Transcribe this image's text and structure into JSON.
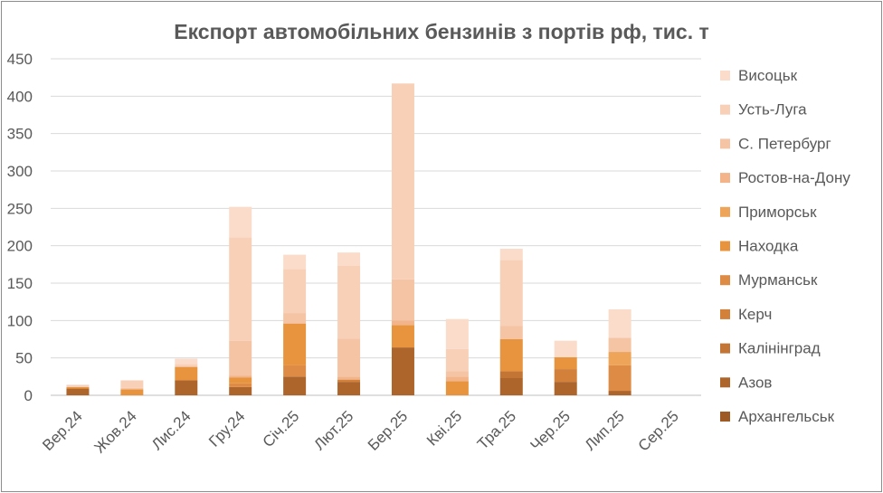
{
  "chart_data": {
    "type": "bar",
    "stacked": true,
    "title": "Експорт автомобільних бензинів з портів рф, тис. т",
    "xlabel": "",
    "ylabel": "",
    "ylim": [
      0,
      450
    ],
    "yticks": [
      0,
      50,
      100,
      150,
      200,
      250,
      300,
      350,
      400,
      450
    ],
    "grid": true,
    "legend_position": "right",
    "categories": [
      "Вер.24",
      "Жов.24",
      "Лис.24",
      "Гру.24",
      "Січ.25",
      "Лют.25",
      "Бер.25",
      "Кві.25",
      "Тра.25",
      "Чер.25",
      "Лип.25",
      "Сер.25"
    ],
    "series": [
      {
        "name": "Архангельськ",
        "color": "#9e5a24",
        "values": [
          0,
          0,
          0,
          0,
          0,
          0,
          0,
          0,
          0,
          0,
          0,
          0
        ]
      },
      {
        "name": "Азов",
        "color": "#ad652c",
        "values": [
          9,
          0,
          20,
          11,
          25,
          18,
          64,
          0,
          23,
          18,
          6,
          0
        ]
      },
      {
        "name": "Калінінград",
        "color": "#c27534",
        "values": [
          0,
          0,
          0,
          0,
          0,
          0,
          0,
          0,
          9,
          0,
          0,
          0
        ]
      },
      {
        "name": "Керч",
        "color": "#d3803b",
        "values": [
          0,
          0,
          0,
          0,
          0,
          3,
          0,
          0,
          0,
          17,
          0,
          0
        ]
      },
      {
        "name": "Мурманськ",
        "color": "#de8c45",
        "values": [
          0,
          0,
          0,
          5,
          15,
          0,
          0,
          0,
          0,
          0,
          34,
          0
        ]
      },
      {
        "name": "Находка",
        "color": "#e8943f",
        "values": [
          2,
          8,
          18,
          8,
          56,
          0,
          30,
          19,
          43,
          16,
          0,
          0
        ]
      },
      {
        "name": "Приморськ",
        "color": "#eea55a",
        "values": [
          0,
          0,
          0,
          0,
          0,
          0,
          0,
          0,
          0,
          0,
          18,
          0
        ]
      },
      {
        "name": "Ростов-на-Дону",
        "color": "#f2b488",
        "values": [
          0,
          0,
          0,
          2,
          0,
          4,
          6,
          6,
          0,
          0,
          0,
          0
        ]
      },
      {
        "name": "С. Петербург",
        "color": "#f5c4a5",
        "values": [
          0,
          2,
          0,
          47,
          14,
          51,
          55,
          7,
          18,
          0,
          19,
          0
        ]
      },
      {
        "name": "Усть-Луга",
        "color": "#f8d0b8",
        "values": [
          3,
          10,
          4,
          138,
          59,
          97,
          262,
          30,
          88,
          0,
          0,
          0
        ]
      },
      {
        "name": "Висоцьк",
        "color": "#fbdcca",
        "values": [
          0,
          0,
          7,
          41,
          19,
          18,
          0,
          40,
          15,
          22,
          38,
          0
        ]
      }
    ]
  }
}
